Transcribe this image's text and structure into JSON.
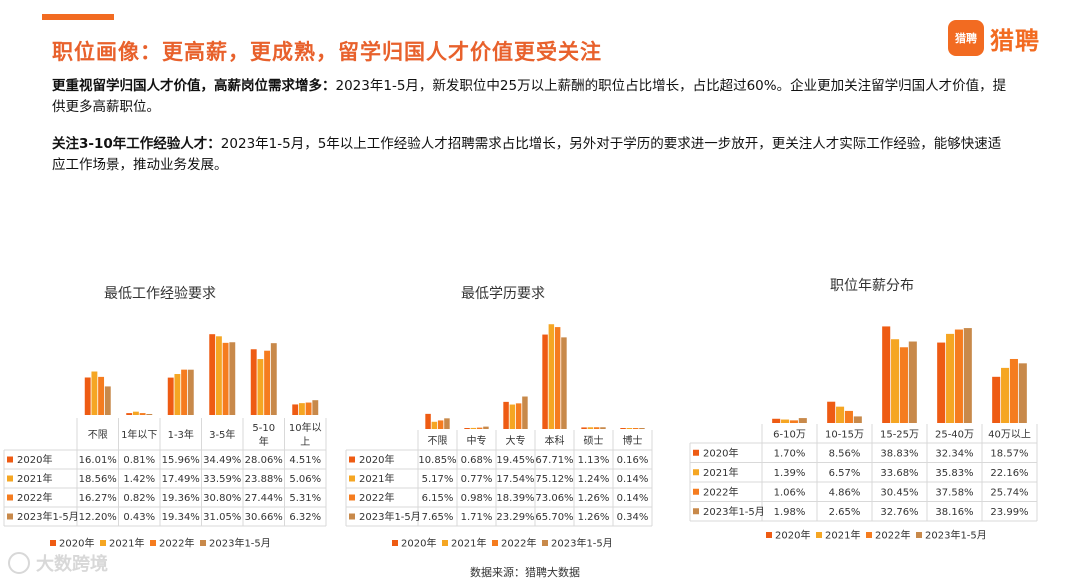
{
  "header": {
    "title": "职位画像：更高薪，更成熟，留学归国人才价值更受关注",
    "logo_badge": "猎聘",
    "logo_text": "猎聘",
    "accent_color": "#f26b21"
  },
  "paragraphs": [
    {
      "bold": "更重视留学归国人才价值，高薪岗位需求增多：",
      "text": "2023年1-5月，新发职位中25万以上薪酬的职位占比增长，占比超过60%。企业更加关注留学归国人才价值，提供更多高薪职位。"
    },
    {
      "bold": "关注3-10年工作经验人才：",
      "text": "2023年1-5月，5年以上工作经验人才招聘需求占比增长，另外对于学历的要求进一步放开，更关注人才实际工作经验，能够快速适应工作场景，推动业务发展。"
    }
  ],
  "series_colors": [
    "#ee5b13",
    "#f5a623",
    "#f57c1f",
    "#c8894a"
  ],
  "chart_data": [
    {
      "type": "bar",
      "title": "最低工作经验要求",
      "categories": [
        "不限",
        "1年以下",
        "1-3年",
        "3-5年",
        "5-10年",
        "10年以上"
      ],
      "series": [
        {
          "name": "2020年",
          "values": [
            "16.01%",
            "0.81%",
            "15.96%",
            "34.49%",
            "28.06%",
            "4.51%"
          ]
        },
        {
          "name": "2021年",
          "values": [
            "18.56%",
            "1.42%",
            "17.49%",
            "33.59%",
            "23.88%",
            "5.06%"
          ]
        },
        {
          "name": "2022年",
          "values": [
            "16.27%",
            "0.82%",
            "19.36%",
            "30.80%",
            "27.44%",
            "5.31%"
          ]
        },
        {
          "name": "2023年1-5月",
          "values": [
            "12.20%",
            "0.43%",
            "19.34%",
            "31.05%",
            "30.66%",
            "6.32%"
          ]
        }
      ],
      "ylim": [
        0,
        35
      ]
    },
    {
      "type": "bar",
      "title": "最低学历要求",
      "categories": [
        "不限",
        "中专",
        "大专",
        "本科",
        "硕士",
        "博士"
      ],
      "series": [
        {
          "name": "2020年",
          "values": [
            "10.85%",
            "0.68%",
            "19.45%",
            "67.71%",
            "1.13%",
            "0.16%"
          ]
        },
        {
          "name": "2021年",
          "values": [
            "5.17%",
            "0.77%",
            "17.54%",
            "75.12%",
            "1.24%",
            "0.14%"
          ]
        },
        {
          "name": "2022年",
          "values": [
            "6.15%",
            "0.98%",
            "18.39%",
            "73.06%",
            "1.26%",
            "0.14%"
          ]
        },
        {
          "name": "2023年1-5月",
          "values": [
            "7.65%",
            "1.71%",
            "23.29%",
            "65.70%",
            "1.26%",
            "0.34%"
          ]
        }
      ],
      "ylim": [
        0,
        76
      ]
    },
    {
      "type": "bar",
      "title": "职位年薪分布",
      "categories": [
        "6-10万",
        "10-15万",
        "15-25万",
        "25-40万",
        "40万以上"
      ],
      "series": [
        {
          "name": "2020年",
          "values": [
            "1.70%",
            "8.56%",
            "38.83%",
            "32.34%",
            "18.57%"
          ]
        },
        {
          "name": "2021年",
          "values": [
            "1.39%",
            "6.57%",
            "33.68%",
            "35.83%",
            "22.16%"
          ]
        },
        {
          "name": "2022年",
          "values": [
            "1.06%",
            "4.86%",
            "30.45%",
            "37.58%",
            "25.74%"
          ]
        },
        {
          "name": "2023年1-5月",
          "values": [
            "1.98%",
            "2.65%",
            "32.76%",
            "38.16%",
            "23.99%"
          ]
        }
      ],
      "ylim": [
        0,
        39
      ]
    }
  ],
  "footer": {
    "source": "数据来源：猎聘大数据",
    "watermark": "大数跨境"
  }
}
